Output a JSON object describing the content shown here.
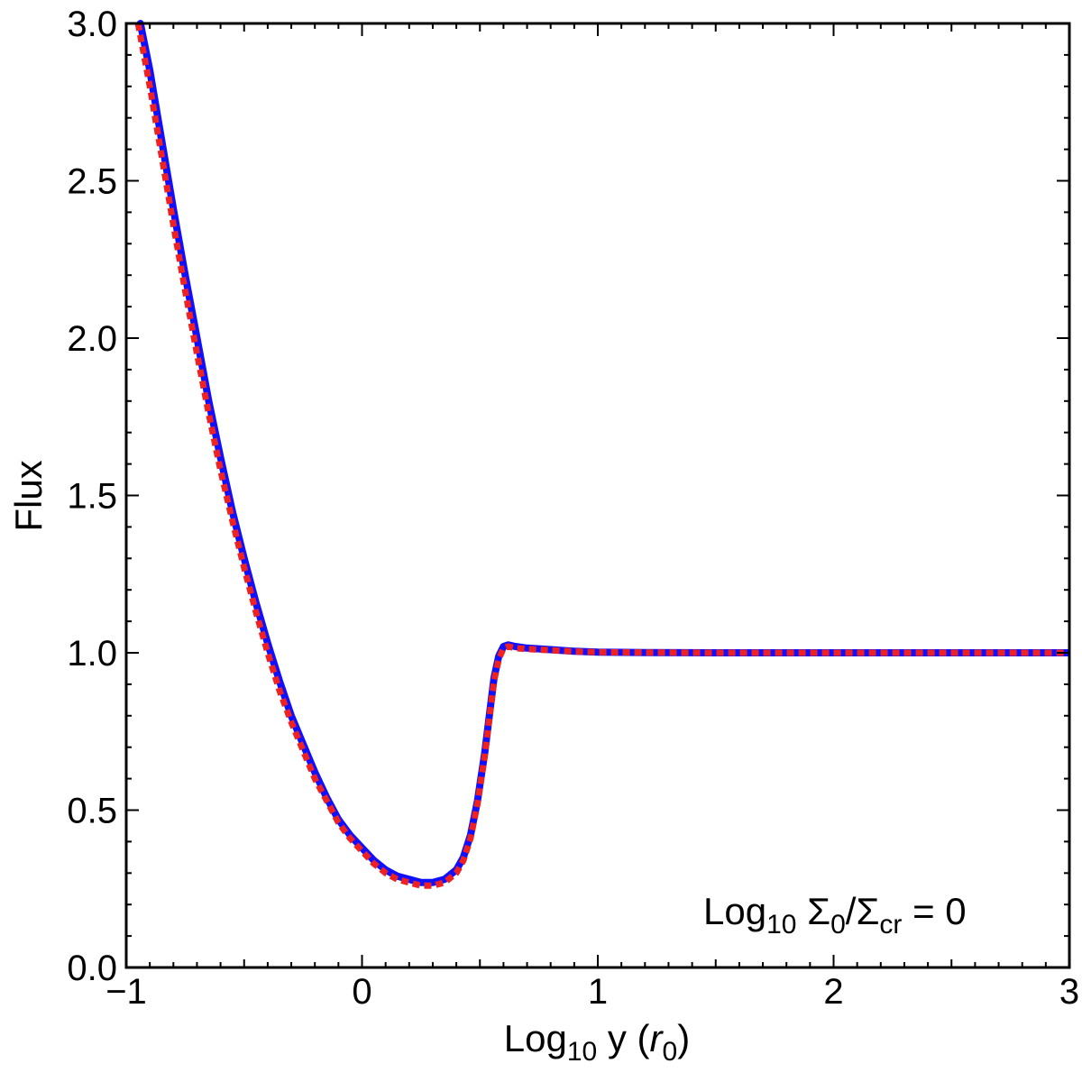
{
  "chart_data": {
    "type": "line",
    "title": "",
    "xlabel": {
      "base": "Log",
      "sub": "10",
      "var": " y (",
      "italic": "r",
      "italic_sub": "0",
      "close": ")"
    },
    "ylabel": "Flux",
    "xlim": [
      -1,
      3
    ],
    "ylim": [
      0,
      3
    ],
    "xticks": [
      -1,
      0,
      1,
      2,
      3
    ],
    "xtick_labels": [
      "−1",
      "0",
      "1",
      "2",
      "3"
    ],
    "yticks": [
      0,
      0.5,
      1,
      1.5,
      2,
      2.5,
      3
    ],
    "ytick_labels": [
      "0.0",
      "0.5",
      "1.0",
      "1.5",
      "2.0",
      "2.5",
      "3.0"
    ],
    "annotation": {
      "text1": "Log",
      "sub1": "10",
      "text2": " Σ",
      "sub2": "0",
      "text3": "/Σ",
      "sub3": "cr",
      "text4": " = 0"
    },
    "grid": false,
    "legend": "none",
    "series": [
      {
        "style": "solid",
        "color": "#1010ff",
        "x": [
          -0.94,
          -0.9,
          -0.85,
          -0.8,
          -0.75,
          -0.7,
          -0.65,
          -0.6,
          -0.55,
          -0.5,
          -0.45,
          -0.4,
          -0.35,
          -0.3,
          -0.25,
          -0.2,
          -0.15,
          -0.1,
          -0.05,
          0.0,
          0.05,
          0.1,
          0.15,
          0.2,
          0.25,
          0.3,
          0.35,
          0.4,
          0.43,
          0.46,
          0.49,
          0.52,
          0.54,
          0.56,
          0.58,
          0.6,
          0.62,
          0.65,
          0.7,
          0.8,
          0.9,
          1.0,
          1.2,
          1.5,
          2.0,
          2.5,
          3.0
        ],
        "y": [
          3.0,
          2.85,
          2.63,
          2.41,
          2.2,
          2.0,
          1.8,
          1.62,
          1.45,
          1.3,
          1.16,
          1.03,
          0.91,
          0.8,
          0.71,
          0.62,
          0.54,
          0.47,
          0.42,
          0.38,
          0.34,
          0.31,
          0.29,
          0.28,
          0.27,
          0.27,
          0.28,
          0.31,
          0.35,
          0.42,
          0.53,
          0.68,
          0.8,
          0.92,
          0.99,
          1.02,
          1.025,
          1.02,
          1.015,
          1.01,
          1.005,
          1.002,
          1.001,
          1.0,
          1.0,
          1.0,
          1.0
        ]
      },
      {
        "style": "dotted",
        "color": "#ee2222",
        "x": [
          -0.95,
          -0.9,
          -0.85,
          -0.8,
          -0.75,
          -0.7,
          -0.65,
          -0.6,
          -0.55,
          -0.5,
          -0.45,
          -0.4,
          -0.35,
          -0.3,
          -0.25,
          -0.2,
          -0.15,
          -0.1,
          -0.05,
          0.0,
          0.05,
          0.1,
          0.15,
          0.2,
          0.25,
          0.3,
          0.35,
          0.4,
          0.43,
          0.46,
          0.49,
          0.52,
          0.54,
          0.56,
          0.58,
          0.6,
          0.62,
          0.65,
          0.7,
          0.8,
          0.9,
          1.0,
          1.2,
          1.5,
          2.0,
          2.5,
          3.0
        ],
        "y": [
          3.0,
          2.8,
          2.58,
          2.36,
          2.15,
          1.95,
          1.76,
          1.58,
          1.42,
          1.27,
          1.13,
          1.0,
          0.88,
          0.78,
          0.69,
          0.6,
          0.53,
          0.46,
          0.41,
          0.37,
          0.33,
          0.3,
          0.28,
          0.27,
          0.26,
          0.26,
          0.27,
          0.3,
          0.34,
          0.41,
          0.52,
          0.67,
          0.79,
          0.91,
          0.98,
          1.015,
          1.02,
          1.015,
          1.012,
          1.008,
          1.004,
          1.002,
          1.001,
          1.0,
          1.0,
          1.0,
          1.0
        ]
      }
    ]
  }
}
